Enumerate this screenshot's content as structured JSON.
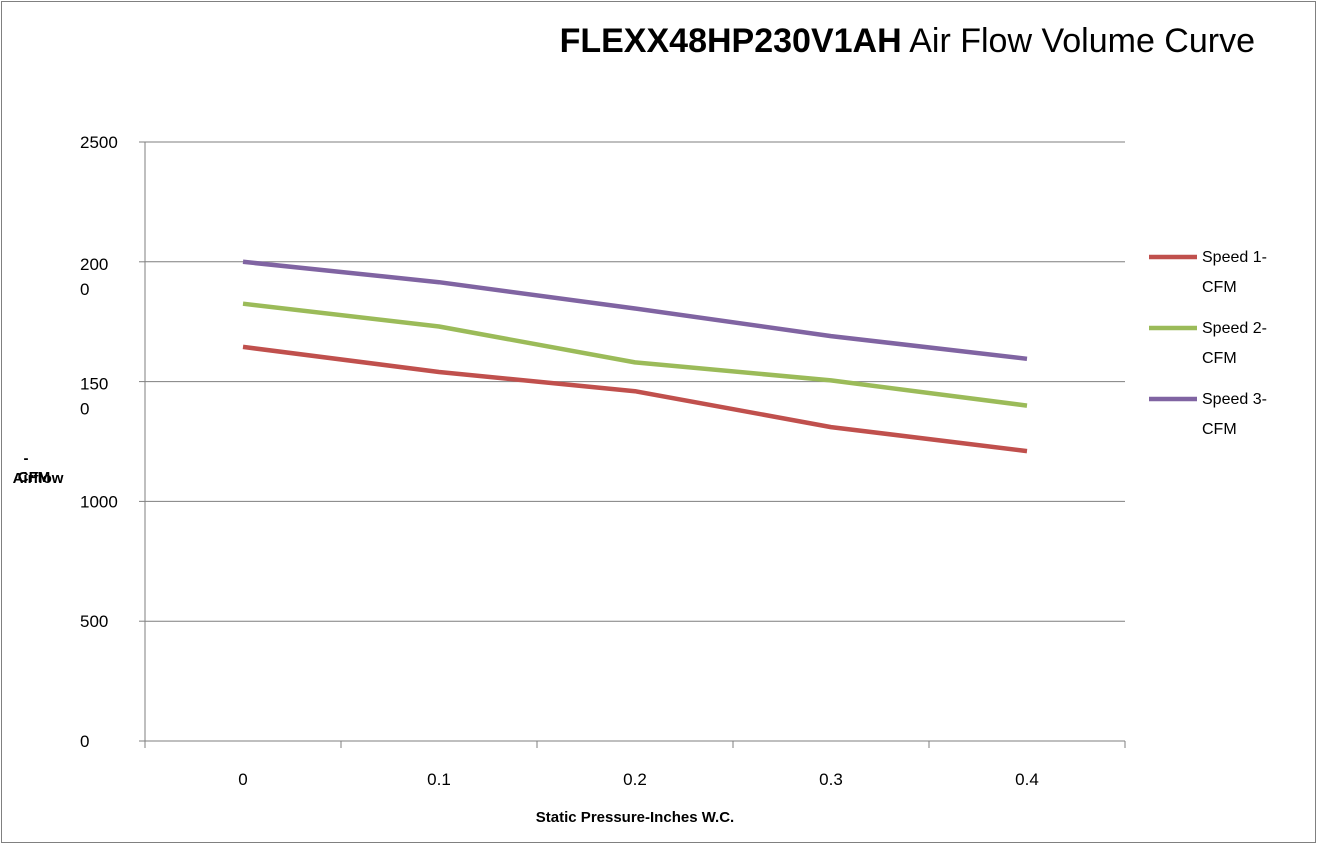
{
  "chart_data": {
    "type": "line",
    "title_bold": "FLEXX48HP230V1AH",
    "title_rest": " Air Flow Volume Curve",
    "xlabel": "Static Pressure-Inches W.C.",
    "ylabel_lines": [
      "-",
      "CFM",
      "Airflow"
    ],
    "x": [
      0,
      0.1,
      0.2,
      0.3,
      0.4
    ],
    "x_tick_labels": [
      "0",
      "0.1",
      "0.2",
      "0.3",
      "0.4"
    ],
    "ylim": [
      0,
      2500
    ],
    "y_ticks": [
      0,
      500,
      1000,
      1500,
      2000,
      2500
    ],
    "y_tick_labels": [
      [
        "0"
      ],
      [
        "500"
      ],
      [
        "1000"
      ],
      [
        "150",
        "0"
      ],
      [
        "200",
        "0"
      ],
      [
        "2500"
      ]
    ],
    "grid": true,
    "legend_position": "right",
    "series": [
      {
        "name_lines": [
          "Speed 1-",
          "CFM"
        ],
        "color": "#c0504d",
        "values": [
          1645,
          1540,
          1460,
          1310,
          1210
        ]
      },
      {
        "name_lines": [
          "Speed 2-",
          "CFM"
        ],
        "color": "#9bbb59",
        "values": [
          1825,
          1730,
          1580,
          1505,
          1400
        ]
      },
      {
        "name_lines": [
          "Speed 3-",
          "CFM"
        ],
        "color": "#8064a2",
        "values": [
          2000,
          1915,
          1805,
          1690,
          1595
        ]
      }
    ]
  }
}
